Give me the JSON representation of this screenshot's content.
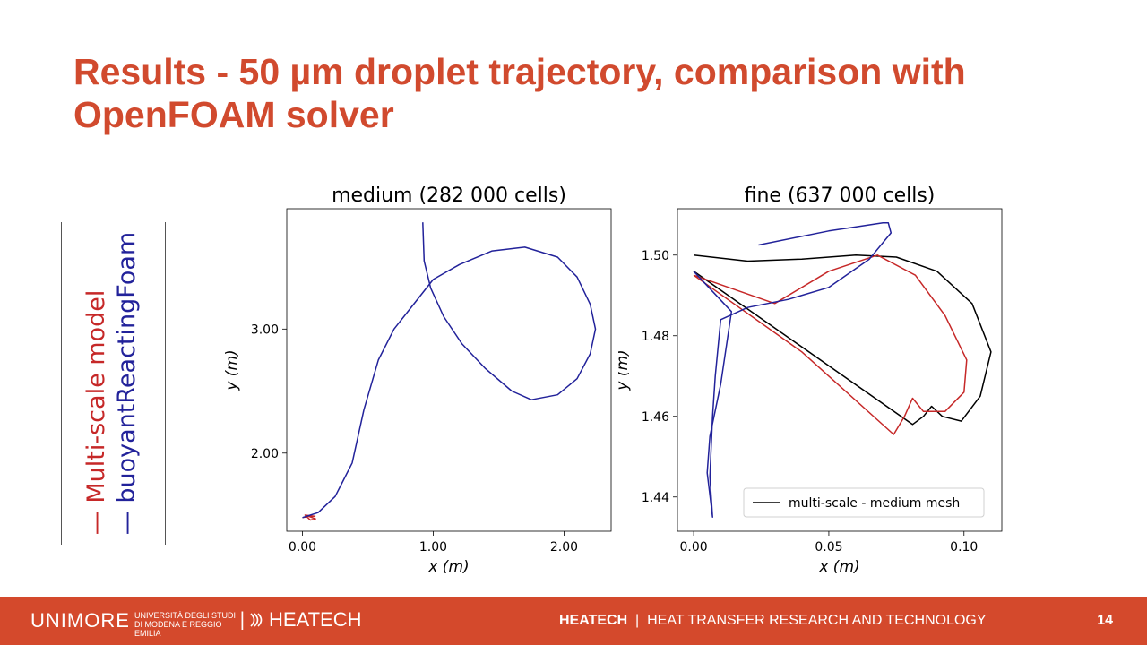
{
  "slide": {
    "title": "Results - 50 µm droplet trajectory, comparison with OpenFOAM solver",
    "legend": {
      "items": [
        {
          "label": "— Multi-scale model",
          "color": "#c62828"
        },
        {
          "label": "— buoyantReactingFoam",
          "color": "#22229a"
        }
      ]
    }
  },
  "footer": {
    "university": "UNIMORE",
    "university_small": "UNIVERSITÀ DEGLI STUDI DI MODENA E REGGIO EMILIA",
    "separator": "|",
    "brand": "HEATECH",
    "center_bold": "HEATECH",
    "center_sep": "|",
    "center_text": "HEAT TRANSFER RESEARCH AND TECHNOLOGY",
    "page_number": "14",
    "background": "#d4492c"
  },
  "chart_data": [
    {
      "type": "line",
      "title": "medium (282 000 cells)",
      "xlabel": "x  (m)",
      "ylabel": "y  (m)",
      "xlim": [
        -0.12,
        2.36
      ],
      "ylim": [
        1.37,
        3.97
      ],
      "xticks": [
        0.0,
        1.0,
        2.0
      ],
      "xtick_labels": [
        "0.00",
        "1.00",
        "2.00"
      ],
      "yticks": [
        2.0,
        3.0
      ],
      "ytick_labels": [
        "2.00",
        "3.00"
      ],
      "grid": false,
      "series": [
        {
          "color": "#c62828",
          "points": [
            [
              0.0,
              1.48
            ],
            [
              0.05,
              1.49
            ],
            [
              0.1,
              1.47
            ],
            [
              0.06,
              1.46
            ],
            [
              0.02,
              1.5
            ],
            [
              0.1,
              1.49
            ]
          ]
        },
        {
          "color": "#22229a",
          "points": [
            [
              0.92,
              3.86
            ],
            [
              0.93,
              3.55
            ],
            [
              0.98,
              3.33
            ],
            [
              1.08,
              3.1
            ],
            [
              1.22,
              2.88
            ],
            [
              1.4,
              2.68
            ],
            [
              1.6,
              2.5
            ],
            [
              1.75,
              2.43
            ],
            [
              1.95,
              2.47
            ],
            [
              2.1,
              2.6
            ],
            [
              2.2,
              2.8
            ],
            [
              2.24,
              3.0
            ],
            [
              2.2,
              3.2
            ],
            [
              2.1,
              3.42
            ],
            [
              1.95,
              3.58
            ],
            [
              1.7,
              3.66
            ],
            [
              1.45,
              3.63
            ],
            [
              1.2,
              3.52
            ],
            [
              1.0,
              3.4
            ],
            [
              0.85,
              3.2
            ],
            [
              0.7,
              3.0
            ],
            [
              0.58,
              2.75
            ],
            [
              0.47,
              2.35
            ],
            [
              0.38,
              1.92
            ],
            [
              0.25,
              1.65
            ],
            [
              0.12,
              1.52
            ],
            [
              0.03,
              1.49
            ],
            [
              0.0,
              1.48
            ]
          ]
        }
      ]
    },
    {
      "type": "line",
      "title": "fine (637 000 cells)",
      "xlabel": "x  (m)",
      "ylabel": "y  (m)",
      "xlim": [
        -0.006,
        0.114
      ],
      "ylim": [
        1.4315,
        1.5115
      ],
      "xticks": [
        0.0,
        0.05,
        0.1
      ],
      "xtick_labels": [
        "0.00",
        "0.05",
        "0.10"
      ],
      "yticks": [
        1.44,
        1.46,
        1.48,
        1.5
      ],
      "ytick_labels": [
        "1.44",
        "1.46",
        "1.48",
        "1.50"
      ],
      "grid": false,
      "legend": {
        "position": "lower right",
        "entries": [
          {
            "label": "multi-scale - medium mesh",
            "color": "#000000"
          }
        ]
      },
      "series": [
        {
          "name": "multi-scale - medium mesh",
          "color": "#000000",
          "points": [
            [
              0.0,
              1.5
            ],
            [
              0.02,
              1.4985
            ],
            [
              0.04,
              1.499
            ],
            [
              0.06,
              1.5
            ],
            [
              0.075,
              1.4995
            ],
            [
              0.09,
              1.496
            ],
            [
              0.103,
              1.488
            ],
            [
              0.11,
              1.476
            ],
            [
              0.106,
              1.465
            ],
            [
              0.099,
              1.4588
            ],
            [
              0.092,
              1.46
            ],
            [
              0.088,
              1.4625
            ],
            [
              0.085,
              1.46
            ],
            [
              0.081,
              1.458
            ],
            [
              0.0,
              1.496
            ]
          ]
        },
        {
          "name": "multi-scale model (fine)",
          "color": "#c62828",
          "points": [
            [
              0.0,
              1.495
            ],
            [
              0.03,
              1.488
            ],
            [
              0.05,
              1.496
            ],
            [
              0.068,
              1.5
            ],
            [
              0.082,
              1.495
            ],
            [
              0.093,
              1.485
            ],
            [
              0.101,
              1.474
            ],
            [
              0.1,
              1.466
            ],
            [
              0.093,
              1.4612
            ],
            [
              0.085,
              1.4612
            ],
            [
              0.081,
              1.4645
            ],
            [
              0.078,
              1.46
            ],
            [
              0.074,
              1.4555
            ],
            [
              0.04,
              1.476
            ],
            [
              0.0,
              1.495
            ]
          ]
        },
        {
          "name": "buoyantReactingFoam",
          "color": "#22229a",
          "points": [
            [
              0.024,
              1.5025
            ],
            [
              0.05,
              1.506
            ],
            [
              0.07,
              1.508
            ],
            [
              0.072,
              1.508
            ],
            [
              0.073,
              1.5055
            ],
            [
              0.065,
              1.499
            ],
            [
              0.05,
              1.492
            ],
            [
              0.035,
              1.489
            ],
            [
              0.02,
              1.487
            ],
            [
              0.01,
              1.484
            ],
            [
              0.008,
              1.47
            ],
            [
              0.007,
              1.46
            ],
            [
              0.006,
              1.445
            ],
            [
              0.007,
              1.435
            ],
            [
              0.005,
              1.446
            ],
            [
              0.006,
              1.455
            ],
            [
              0.01,
              1.468
            ],
            [
              0.014,
              1.486
            ],
            [
              0.0,
              1.496
            ]
          ]
        }
      ]
    }
  ]
}
